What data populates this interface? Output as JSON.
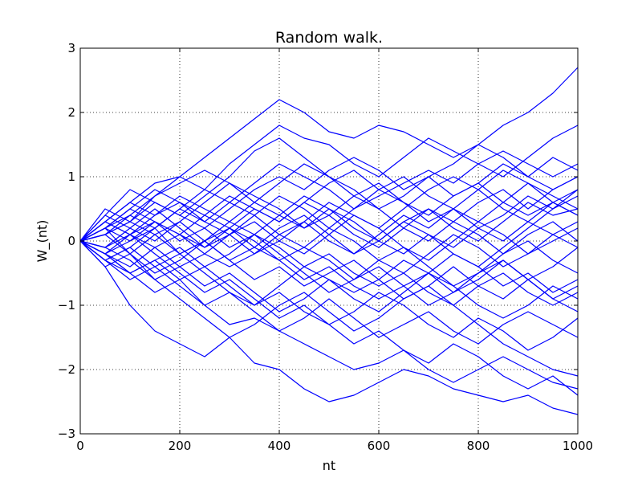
{
  "chart_data": {
    "type": "line",
    "title": "Random walk.",
    "xlabel": "nt",
    "ylabel": "W_(nt)",
    "xlim": [
      0,
      1000
    ],
    "ylim": [
      -3,
      3
    ],
    "xticks": [
      0,
      200,
      400,
      600,
      800,
      1000
    ],
    "xtick_labels": [
      "0",
      "200",
      "400",
      "600",
      "800",
      "1000"
    ],
    "yticks": [
      3,
      2,
      1,
      0,
      -1,
      -2,
      -3
    ],
    "ytick_labels": [
      "3",
      "2",
      "1",
      "0",
      "−1",
      "−2",
      "−3"
    ],
    "grid": true,
    "line_color": "#0000ff",
    "x": [
      0,
      50,
      100,
      150,
      200,
      250,
      300,
      350,
      400,
      450,
      500,
      550,
      600,
      650,
      700,
      750,
      800,
      850,
      900,
      950,
      1000
    ],
    "series": [
      {
        "values": [
          0,
          0.3,
          0.6,
          0.9,
          1.0,
          1.3,
          1.6,
          1.9,
          2.2,
          2.0,
          1.7,
          1.6,
          1.8,
          1.7,
          1.5,
          1.3,
          1.5,
          1.8,
          2.0,
          2.3,
          2.7
        ]
      },
      {
        "values": [
          0,
          -0.4,
          -1.0,
          -1.4,
          -1.6,
          -1.8,
          -1.5,
          -1.9,
          -2.0,
          -2.3,
          -2.5,
          -2.4,
          -2.2,
          -2.0,
          -2.1,
          -2.3,
          -2.4,
          -2.5,
          -2.4,
          -2.6,
          -2.7
        ]
      },
      {
        "values": [
          0,
          0.2,
          0.4,
          0.2,
          0.5,
          0.8,
          1.2,
          1.5,
          1.8,
          1.6,
          1.5,
          1.2,
          1.0,
          1.3,
          1.6,
          1.4,
          1.2,
          1.0,
          1.3,
          1.6,
          1.8
        ]
      },
      {
        "values": [
          0,
          -0.2,
          -0.5,
          -0.8,
          -0.6,
          -1.0,
          -1.3,
          -1.2,
          -1.4,
          -1.6,
          -1.8,
          -2.0,
          -1.9,
          -1.7,
          -2.0,
          -2.2,
          -2.0,
          -1.8,
          -2.0,
          -2.2,
          -2.3
        ]
      },
      {
        "values": [
          0,
          0.5,
          0.3,
          0.7,
          1.0,
          0.8,
          0.6,
          0.9,
          1.2,
          1.0,
          0.8,
          0.5,
          0.7,
          0.9,
          1.1,
          0.9,
          1.2,
          1.4,
          1.2,
          1.0,
          1.2
        ]
      },
      {
        "values": [
          0,
          0.1,
          -0.2,
          0.1,
          0.3,
          0.0,
          -0.3,
          -0.1,
          0.2,
          0.4,
          0.1,
          -0.2,
          0.0,
          0.3,
          0.5,
          0.2,
          0.0,
          0.3,
          0.6,
          0.4,
          0.5
        ]
      },
      {
        "values": [
          0,
          -0.3,
          -0.1,
          0.2,
          -0.2,
          -0.5,
          -0.8,
          -1.0,
          -0.7,
          -0.4,
          -0.6,
          -0.9,
          -1.1,
          -0.8,
          -0.5,
          -0.7,
          -1.0,
          -1.2,
          -1.0,
          -0.7,
          -0.9
        ]
      },
      {
        "values": [
          0,
          0.4,
          0.8,
          0.6,
          0.4,
          0.7,
          1.0,
          1.4,
          1.6,
          1.3,
          1.0,
          0.8,
          0.5,
          0.7,
          1.0,
          1.2,
          1.5,
          1.3,
          1.0,
          0.8,
          1.0
        ]
      },
      {
        "values": [
          0,
          -0.1,
          0.2,
          0.5,
          0.2,
          -0.1,
          0.1,
          0.4,
          0.7,
          0.5,
          0.2,
          0.0,
          -0.3,
          -0.5,
          -0.2,
          0.1,
          -0.1,
          -0.4,
          -0.2,
          0.1,
          0.3
        ]
      },
      {
        "values": [
          0,
          0.2,
          -0.2,
          -0.5,
          -0.3,
          0.0,
          0.3,
          0.1,
          -0.2,
          -0.5,
          -0.8,
          -0.6,
          -0.3,
          -0.1,
          -0.4,
          -0.7,
          -0.5,
          -0.2,
          0.0,
          -0.3,
          -0.5
        ]
      },
      {
        "values": [
          0,
          -0.3,
          -0.6,
          -0.4,
          -0.7,
          -1.0,
          -0.8,
          -1.1,
          -1.4,
          -1.2,
          -0.9,
          -1.2,
          -1.5,
          -1.3,
          -1.1,
          -1.4,
          -1.6,
          -1.3,
          -1.1,
          -1.3,
          -1.5
        ]
      },
      {
        "values": [
          0,
          0.3,
          0.1,
          0.4,
          0.6,
          0.4,
          0.7,
          0.5,
          0.3,
          0.6,
          0.9,
          1.1,
          0.8,
          0.6,
          0.4,
          0.7,
          0.9,
          0.6,
          0.4,
          0.6,
          0.8
        ]
      },
      {
        "values": [
          0,
          -0.2,
          0.1,
          -0.1,
          -0.4,
          -0.2,
          0.1,
          0.3,
          0.0,
          -0.2,
          0.1,
          0.4,
          0.2,
          -0.1,
          -0.3,
          0.0,
          0.3,
          0.1,
          -0.2,
          0.0,
          0.2
        ]
      },
      {
        "values": [
          0,
          0.1,
          0.4,
          0.7,
          0.9,
          1.1,
          0.9,
          0.6,
          0.4,
          0.7,
          0.5,
          0.2,
          0.0,
          0.3,
          0.1,
          -0.2,
          -0.4,
          -0.1,
          0.2,
          0.5,
          0.7
        ]
      },
      {
        "values": [
          0,
          -0.4,
          -0.2,
          -0.6,
          -0.9,
          -1.2,
          -1.5,
          -1.3,
          -1.0,
          -0.8,
          -1.1,
          -1.4,
          -1.2,
          -0.9,
          -0.7,
          -1.0,
          -1.3,
          -1.6,
          -1.8,
          -2.0,
          -2.1
        ]
      },
      {
        "values": [
          0,
          0.2,
          0.5,
          0.3,
          0.1,
          -0.1,
          0.2,
          0.0,
          -0.3,
          -0.1,
          0.2,
          0.5,
          0.8,
          1.0,
          0.7,
          0.5,
          0.8,
          1.1,
          0.9,
          0.6,
          0.4
        ]
      },
      {
        "values": [
          0,
          -0.1,
          -0.3,
          -0.6,
          -0.4,
          -0.7,
          -0.5,
          -0.8,
          -1.1,
          -0.9,
          -0.6,
          -0.8,
          -0.6,
          -0.3,
          -0.5,
          -0.8,
          -0.6,
          -0.3,
          -0.6,
          -0.9,
          -1.1
        ]
      },
      {
        "values": [
          0,
          0.3,
          0.6,
          0.4,
          0.7,
          0.5,
          0.3,
          0.6,
          0.9,
          1.2,
          1.0,
          0.7,
          0.9,
          0.6,
          0.3,
          0.5,
          0.2,
          0.0,
          0.3,
          0.1,
          -0.1
        ]
      },
      {
        "values": [
          0,
          -0.2,
          0.0,
          0.3,
          0.1,
          0.4,
          0.2,
          -0.1,
          -0.3,
          -0.6,
          -0.4,
          -0.7,
          -0.9,
          -0.7,
          -1.0,
          -0.8,
          -0.5,
          -0.3,
          -0.6,
          -0.4,
          -0.1
        ]
      },
      {
        "values": [
          0,
          0.4,
          0.2,
          0.0,
          0.3,
          0.6,
          0.9,
          0.7,
          0.5,
          0.2,
          0.4,
          0.1,
          -0.1,
          0.2,
          0.0,
          0.3,
          0.6,
          0.8,
          0.5,
          0.8,
          1.0
        ]
      },
      {
        "values": [
          0,
          -0.3,
          -0.5,
          -0.3,
          -0.6,
          -0.4,
          -0.7,
          -1.0,
          -0.8,
          -1.1,
          -1.3,
          -1.1,
          -0.8,
          -1.0,
          -1.3,
          -1.5,
          -1.2,
          -1.4,
          -1.7,
          -1.5,
          -1.2
        ]
      },
      {
        "values": [
          0,
          0.1,
          0.3,
          0.1,
          -0.2,
          0.0,
          0.2,
          0.5,
          0.3,
          0.6,
          0.4,
          0.7,
          0.5,
          0.2,
          0.5,
          0.3,
          0.1,
          -0.2,
          0.1,
          0.3,
          0.0
        ]
      },
      {
        "values": [
          0,
          -0.2,
          -0.4,
          -0.1,
          0.1,
          -0.2,
          -0.4,
          -0.2,
          0.1,
          -0.1,
          -0.3,
          -0.6,
          -0.4,
          -0.7,
          -0.5,
          -0.2,
          -0.4,
          -0.7,
          -0.5,
          -0.8,
          -0.6
        ]
      },
      {
        "values": [
          0,
          0.2,
          0.5,
          0.8,
          0.6,
          0.3,
          0.1,
          -0.2,
          0.0,
          0.3,
          0.6,
          0.4,
          0.2,
          0.5,
          0.8,
          1.0,
          0.8,
          0.5,
          0.3,
          0.6,
          0.4
        ]
      },
      {
        "values": [
          0,
          -0.1,
          0.1,
          -0.2,
          -0.5,
          -0.8,
          -0.6,
          -0.9,
          -1.2,
          -1.0,
          -1.3,
          -1.6,
          -1.4,
          -1.7,
          -1.9,
          -1.6,
          -1.8,
          -2.1,
          -2.3,
          -2.1,
          -2.4
        ]
      },
      {
        "values": [
          0,
          0.3,
          0.1,
          0.3,
          0.0,
          0.2,
          -0.1,
          0.1,
          0.4,
          0.2,
          0.5,
          0.3,
          0.0,
          -0.2,
          0.1,
          -0.1,
          0.2,
          0.4,
          0.7,
          0.5,
          0.8
        ]
      },
      {
        "values": [
          0,
          -0.2,
          -0.5,
          -0.3,
          -0.1,
          -0.4,
          -0.2,
          0.1,
          -0.1,
          -0.4,
          -0.2,
          -0.5,
          -0.7,
          -0.5,
          -0.8,
          -1.0,
          -0.7,
          -0.9,
          -0.6,
          -0.9,
          -0.7
        ]
      },
      {
        "values": [
          0,
          0.1,
          0.3,
          0.6,
          0.4,
          0.2,
          0.5,
          0.8,
          1.0,
          0.8,
          1.1,
          1.3,
          1.1,
          0.8,
          1.0,
          0.7,
          0.9,
          1.2,
          1.0,
          1.3,
          1.1
        ]
      },
      {
        "values": [
          0,
          -0.3,
          -0.1,
          -0.4,
          -0.2,
          0.0,
          -0.3,
          -0.6,
          -0.4,
          -0.7,
          -0.5,
          -0.3,
          -0.6,
          -0.9,
          -0.7,
          -0.4,
          -0.7,
          -0.5,
          -0.8,
          -1.0,
          -0.8
        ]
      },
      {
        "values": [
          0,
          0.2,
          0.0,
          0.2,
          0.5,
          0.3,
          0.6,
          0.4,
          0.1,
          0.3,
          0.0,
          -0.2,
          0.1,
          0.4,
          0.2,
          0.5,
          0.3,
          0.6,
          0.9,
          0.7,
          0.5
        ]
      }
    ]
  }
}
